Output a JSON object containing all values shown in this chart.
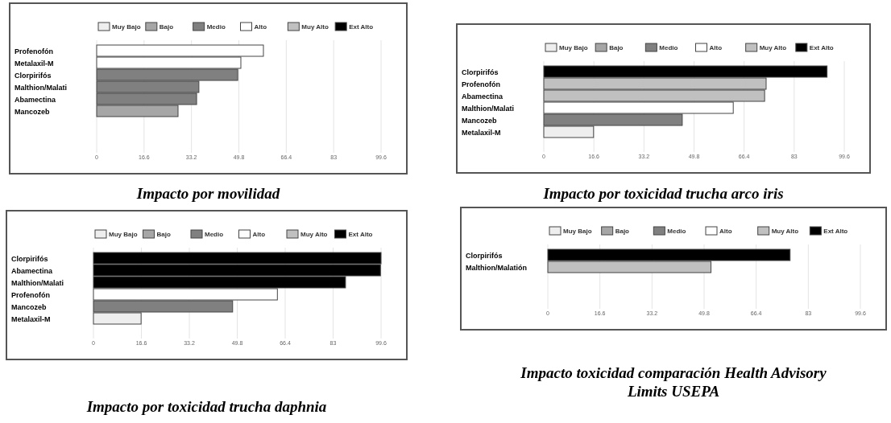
{
  "chart_data": [
    {
      "type": "bar",
      "orientation": "horizontal",
      "title": "Impacto por movilidad",
      "legend": "top",
      "grid": "x",
      "categories": [
        "Profenofón",
        "Metalaxil-M",
        "Clorpirifós",
        "Malthion/Malati",
        "Abamectina",
        "Mancozeb"
      ],
      "xlim": [
        0,
        99.6
      ],
      "xticks": [
        0,
        16.6,
        33.2,
        49.8,
        66.4,
        83,
        99.6
      ],
      "series": [
        {
          "name": "Muy Bajo",
          "color": "#eeeeee",
          "values": [
            null,
            null,
            null,
            null,
            null,
            null
          ]
        },
        {
          "name": "Bajo",
          "color": "#a6a6a6",
          "values": [
            null,
            null,
            null,
            null,
            null,
            28.5
          ]
        },
        {
          "name": "Medio",
          "color": "#808080",
          "values": [
            null,
            null,
            49.4,
            35.8,
            35,
            null
          ]
        },
        {
          "name": "Alto",
          "color": "#ffffff",
          "values": [
            58.4,
            50.5,
            null,
            null,
            null,
            null
          ]
        },
        {
          "name": "Muy Alto",
          "color": "#c0c0c0",
          "values": [
            null,
            null,
            null,
            null,
            null,
            null
          ]
        },
        {
          "name": "Ext Alto",
          "color": "#000000",
          "values": [
            null,
            null,
            null,
            null,
            null,
            null
          ]
        }
      ]
    },
    {
      "type": "bar",
      "orientation": "horizontal",
      "title": "Impacto por toxicidad trucha arco iris",
      "legend": "top",
      "grid": "x",
      "categories": [
        "Clorpirifós",
        "Profenofón",
        "Abamectina",
        "Malthion/Malati",
        "Mancozeb",
        "Metalaxil-M"
      ],
      "xlim": [
        0,
        99.6
      ],
      "xticks": [
        0,
        16.6,
        33.2,
        49.8,
        66.4,
        83,
        99.6
      ],
      "series": [
        {
          "name": "Muy Bajo",
          "color": "#eeeeee",
          "values": [
            null,
            null,
            null,
            null,
            null,
            16.5
          ]
        },
        {
          "name": "Bajo",
          "color": "#a6a6a6",
          "values": [
            null,
            null,
            null,
            null,
            null,
            null
          ]
        },
        {
          "name": "Medio",
          "color": "#808080",
          "values": [
            null,
            null,
            null,
            null,
            45.9,
            null
          ]
        },
        {
          "name": "Alto",
          "color": "#ffffff",
          "values": [
            null,
            null,
            null,
            62.8,
            null,
            null
          ]
        },
        {
          "name": "Muy Alto",
          "color": "#c0c0c0",
          "values": [
            null,
            73.7,
            73.2,
            null,
            null,
            null
          ]
        },
        {
          "name": "Ext Alto",
          "color": "#000000",
          "values": [
            93.9,
            null,
            null,
            null,
            null,
            null
          ]
        }
      ]
    },
    {
      "type": "bar",
      "orientation": "horizontal",
      "title": "Impacto por toxicidad trucha daphnia",
      "legend": "top",
      "grid": "x",
      "categories": [
        "Clorpirifós",
        "Abamectina",
        "Malthion/Malati",
        "Profenofón",
        "Mancozeb",
        "Metalaxil-M"
      ],
      "xlim": [
        0,
        99.6
      ],
      "xticks": [
        0,
        16.6,
        33.2,
        49.8,
        66.4,
        83,
        99.6
      ],
      "series": [
        {
          "name": "Muy Bajo",
          "color": "#eeeeee",
          "values": [
            null,
            null,
            null,
            null,
            null,
            16.5
          ]
        },
        {
          "name": "Bajo",
          "color": "#a6a6a6",
          "values": [
            null,
            null,
            null,
            null,
            null,
            null
          ]
        },
        {
          "name": "Medio",
          "color": "#808080",
          "values": [
            null,
            null,
            null,
            null,
            48.2,
            null
          ]
        },
        {
          "name": "Alto",
          "color": "#ffffff",
          "values": [
            null,
            null,
            null,
            63.7,
            null,
            null
          ]
        },
        {
          "name": "Muy Alto",
          "color": "#c0c0c0",
          "values": [
            null,
            null,
            null,
            null,
            null,
            null
          ]
        },
        {
          "name": "Ext Alto",
          "color": "#000000",
          "values": [
            99.6,
            99.4,
            87.3,
            null,
            null,
            null
          ]
        }
      ]
    },
    {
      "type": "bar",
      "orientation": "horizontal",
      "title": "Impacto toxicidad comparación Health Advisory Limits USEPA",
      "legend": "top",
      "grid": "x",
      "categories": [
        "Clorpirifós",
        "Malthion/Malatión"
      ],
      "xlim": [
        0,
        99.6
      ],
      "xticks": [
        0,
        16.6,
        33.2,
        49.8,
        66.4,
        83,
        99.6
      ],
      "series": [
        {
          "name": "Muy Bajo",
          "color": "#eeeeee",
          "values": [
            null,
            null
          ]
        },
        {
          "name": "Bajo",
          "color": "#a6a6a6",
          "values": [
            null,
            null
          ]
        },
        {
          "name": "Medio",
          "color": "#808080",
          "values": [
            null,
            null
          ]
        },
        {
          "name": "Alto",
          "color": "#ffffff",
          "values": [
            null,
            null
          ]
        },
        {
          "name": "Muy Alto",
          "color": "#c0c0c0",
          "values": [
            null,
            52.0
          ]
        },
        {
          "name": "Ext Alto",
          "color": "#000000",
          "values": [
            77.2,
            null
          ]
        }
      ]
    }
  ]
}
